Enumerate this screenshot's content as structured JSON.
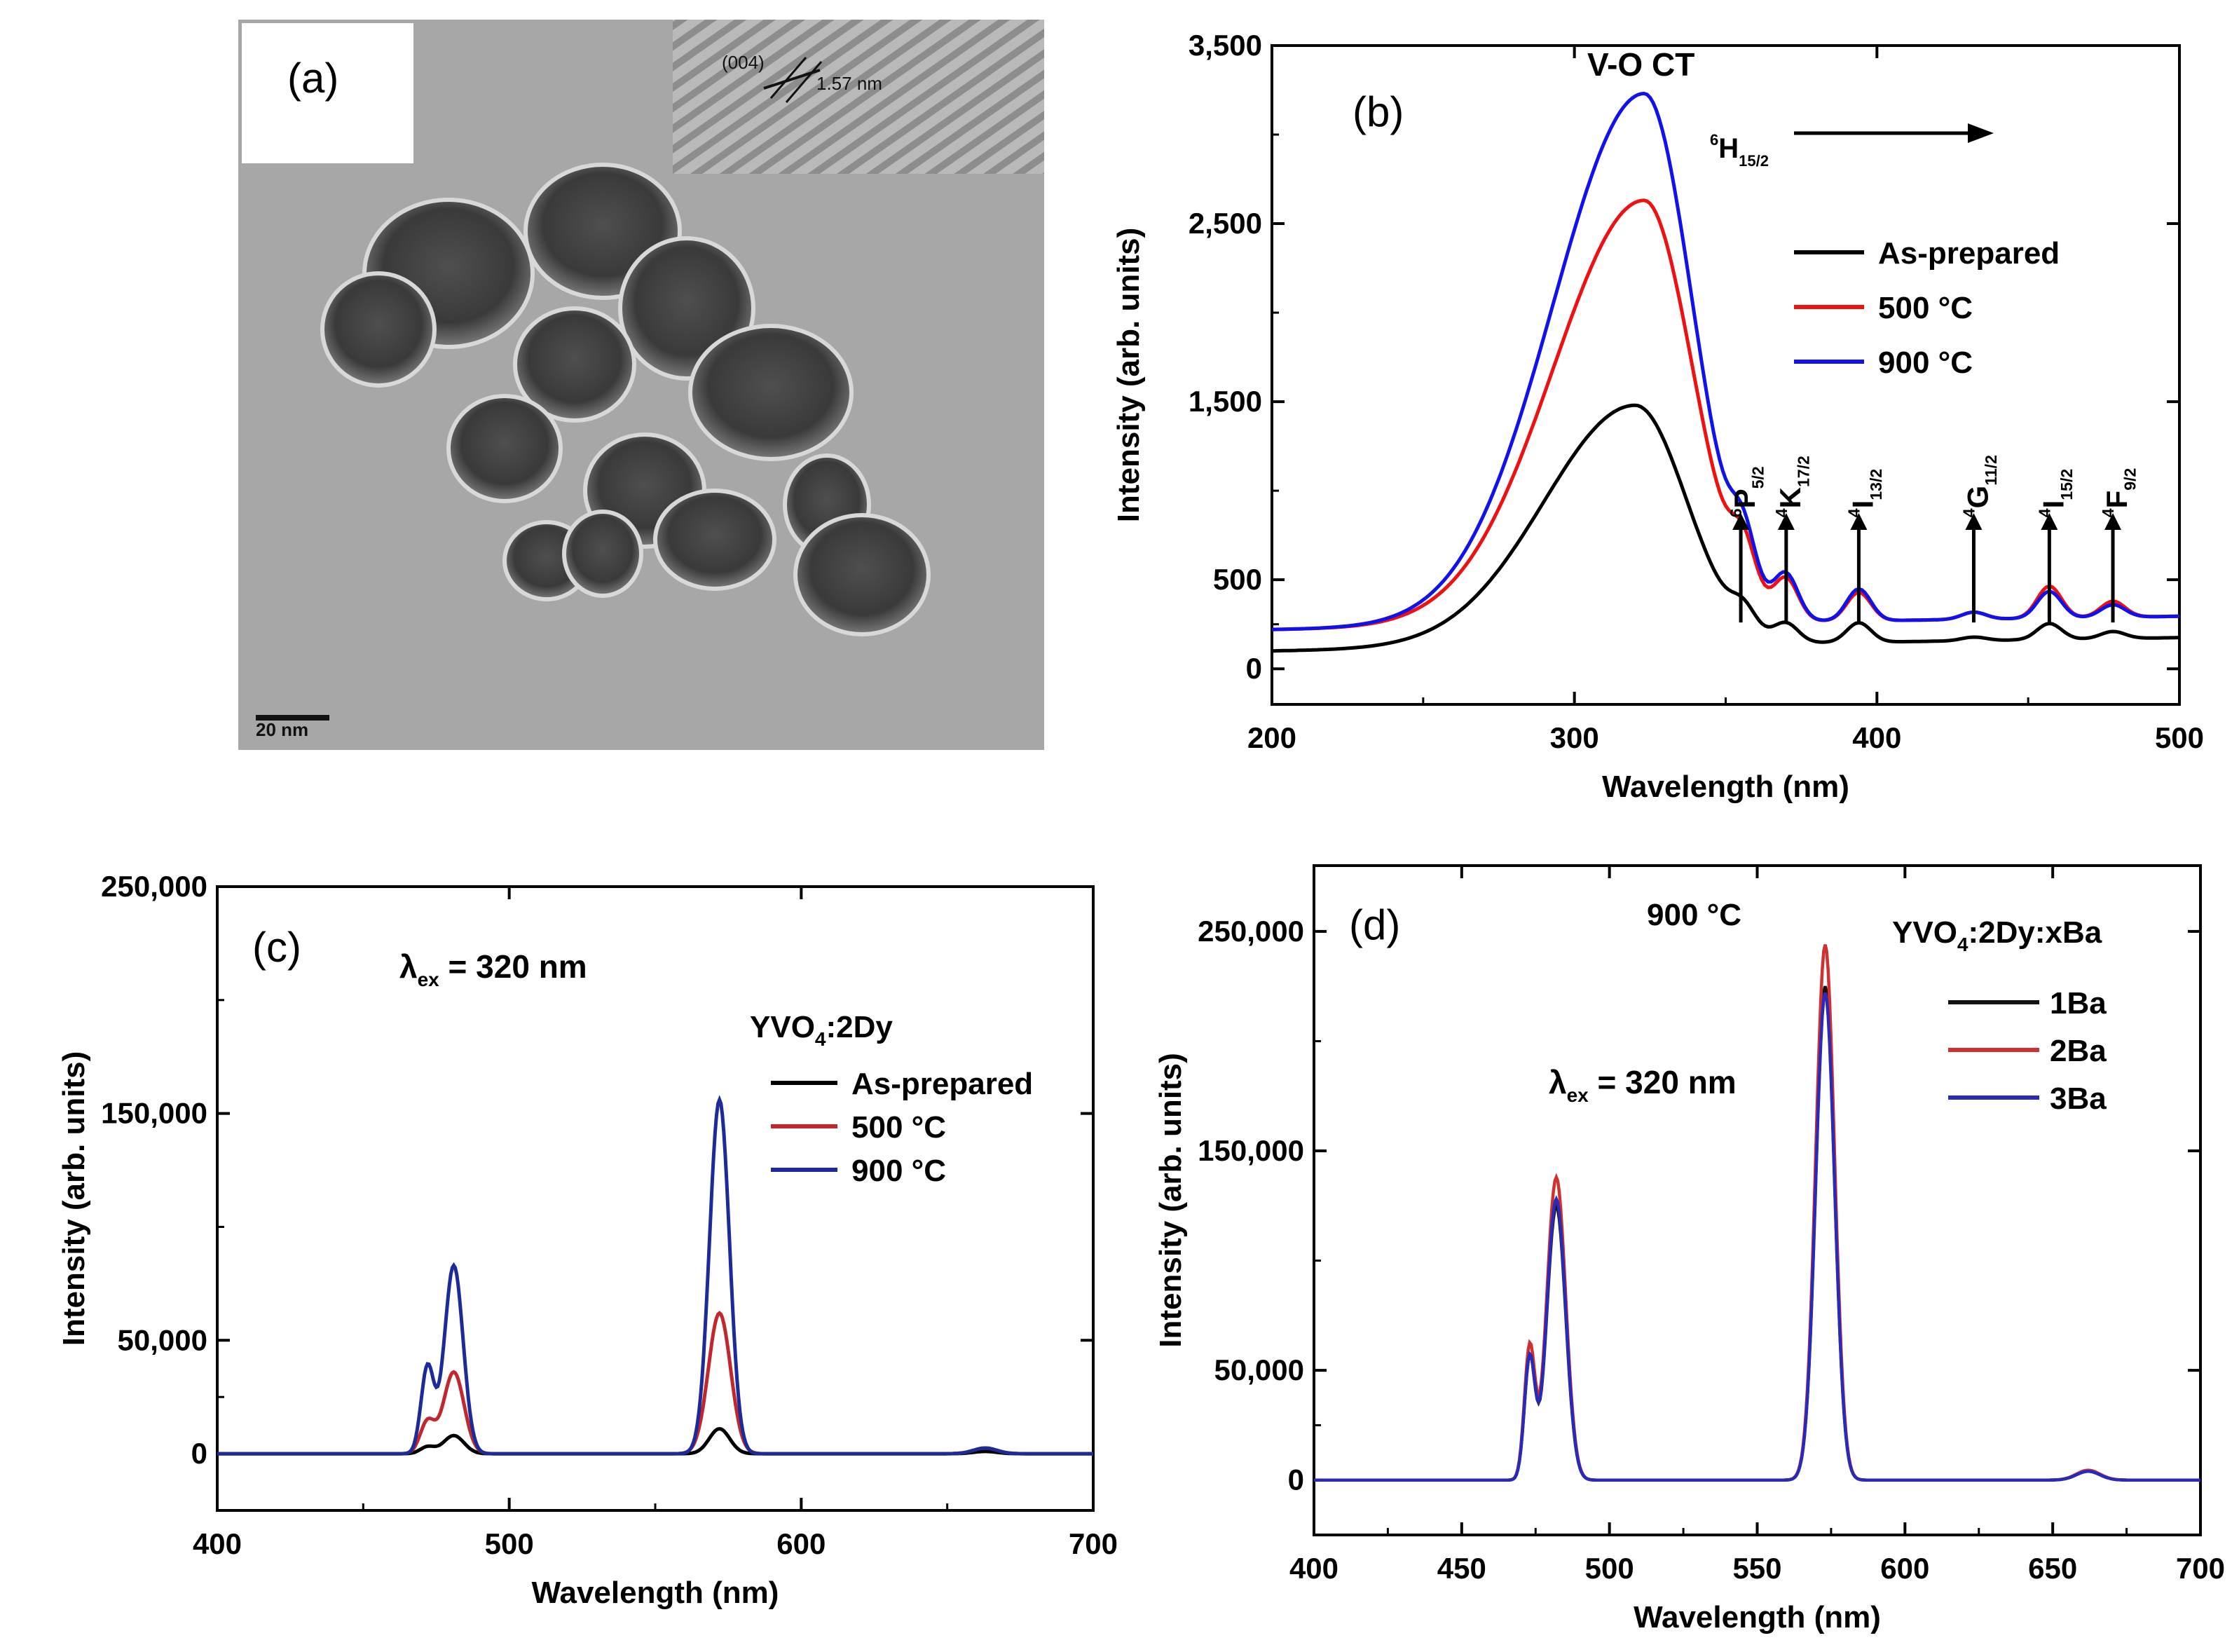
{
  "panel_a": {
    "label": "(a)",
    "lattice_plane": "(004)",
    "lattice_spacing": "1.57 nm",
    "scale_bar": "20 nm"
  },
  "chart_data": [
    {
      "id": "b",
      "type": "line",
      "panel_label": "(b)",
      "xlabel": "Wavelength (nm)",
      "ylabel": "Intensity (arb. units)",
      "xlim": [
        200,
        500
      ],
      "ylim": [
        -200,
        3500
      ],
      "xticks": [
        200,
        300,
        400,
        500
      ],
      "xtick_labels": [
        "200",
        "300",
        "400",
        "500"
      ],
      "yticks": [
        0,
        500,
        1500,
        2500,
        3500
      ],
      "ytick_labels": [
        "0",
        "500",
        "1,500",
        "2,500",
        "3,500"
      ],
      "peak_label": "V-O CT",
      "arrow_label": {
        "sup": "6",
        "main": "H",
        "sub": "15/2"
      },
      "transitions": [
        {
          "x": 355,
          "sup": "6",
          "main": "P",
          "sub": "5/2"
        },
        {
          "x": 370,
          "sup": "4",
          "main": "K",
          "sub": "17/2"
        },
        {
          "x": 394,
          "sup": "4",
          "main": "I",
          "sub": "13/2"
        },
        {
          "x": 432,
          "sup": "4",
          "main": "G",
          "sub": "11/2"
        },
        {
          "x": 457,
          "sup": "4",
          "main": "I",
          "sub": "15/2"
        },
        {
          "x": 478,
          "sup": "4",
          "main": "F",
          "sub": "9/2"
        }
      ],
      "legend": {
        "position": "right"
      },
      "series": [
        {
          "name": "As-prepared",
          "color": "#000000",
          "base": 100,
          "peak_x": 320,
          "peak_y": 1450,
          "width_left": 30,
          "width_right": 17,
          "small_peaks": [
            [
              356,
              110
            ],
            [
              370,
              100
            ],
            [
              394,
              110
            ],
            [
              432,
              20
            ],
            [
              457,
              90
            ],
            [
              478,
              40
            ]
          ]
        },
        {
          "name": "500 °C",
          "color": "#ee1111",
          "base": 220,
          "peak_x": 323,
          "peak_y": 2600,
          "width_left": 30,
          "width_right": 16,
          "small_peaks": [
            [
              356,
              260
            ],
            [
              370,
              220
            ],
            [
              394,
              160
            ],
            [
              432,
              40
            ],
            [
              457,
              180
            ],
            [
              478,
              90
            ]
          ]
        },
        {
          "name": "900 °C",
          "color": "#1111ee",
          "base": 220,
          "peak_x": 323,
          "peak_y": 3200,
          "width_left": 30,
          "width_right": 16,
          "small_peaks": [
            [
              356,
              280
            ],
            [
              370,
              240
            ],
            [
              394,
              180
            ],
            [
              432,
              40
            ],
            [
              457,
              150
            ],
            [
              478,
              70
            ]
          ]
        }
      ]
    },
    {
      "id": "c",
      "type": "line",
      "panel_label": "(c)",
      "xlabel": "Wavelength (nm)",
      "ylabel": "Intensity (arb. units)",
      "xlim": [
        400,
        700
      ],
      "ylim": [
        -25000,
        250000
      ],
      "xticks": [
        400,
        500,
        600,
        700
      ],
      "xtick_labels": [
        "400",
        "500",
        "600",
        "700"
      ],
      "yticks": [
        0,
        50000,
        150000,
        250000
      ],
      "ytick_labels": [
        "0",
        "50,000",
        "150,000",
        "250,000"
      ],
      "excitation": {
        "symbol": "λ",
        "sub": "ex",
        "text": " = 320 nm"
      },
      "legend_title": {
        "a": "YVO",
        "sub": "4",
        "b": ":2Dy"
      },
      "legend": {
        "position": "right"
      },
      "series": [
        {
          "name": "As-prepared",
          "color": "#000000",
          "peaks": [
            [
              472,
              3000,
              2.5
            ],
            [
              481,
              8000,
              3.5
            ],
            [
              572,
              11000,
              3.5
            ],
            [
              663,
              1000,
              4
            ]
          ]
        },
        {
          "name": "500 °C",
          "color": "#c0282d",
          "peaks": [
            [
              472,
              14000,
              2.5
            ],
            [
              481,
              36000,
              3.5
            ],
            [
              572,
              62000,
              3.8
            ],
            [
              663,
              2500,
              4
            ]
          ]
        },
        {
          "name": "900 °C",
          "color": "#1c2a9a",
          "peaks": [
            [
              472,
              38000,
              2.2
            ],
            [
              481,
              83000,
              3.2
            ],
            [
              572,
              156000,
              3.4
            ],
            [
              663,
              2500,
              4
            ]
          ]
        }
      ]
    },
    {
      "id": "d",
      "type": "line",
      "panel_label": "(d)",
      "xlabel": "Wavelength (nm)",
      "ylabel": "Intensity (arb. units)",
      "xlim": [
        400,
        700
      ],
      "ylim": [
        -25000,
        280000
      ],
      "xticks": [
        400,
        450,
        500,
        550,
        600,
        650,
        700
      ],
      "xtick_labels": [
        "400",
        "450",
        "500",
        "550",
        "600",
        "650",
        "700"
      ],
      "yticks": [
        0,
        50000,
        150000,
        250000
      ],
      "ytick_labels": [
        "0",
        "50,000",
        "150,000",
        "250,000"
      ],
      "temperature": "900 °C",
      "excitation": {
        "symbol": "λ",
        "sub": "ex",
        "text": " = 320 nm"
      },
      "legend_title": {
        "a": "YVO",
        "sub": "4",
        "b": ":2Dy:xBa"
      },
      "legend": {
        "position": "top-right"
      },
      "series": [
        {
          "name": "1Ba",
          "color": "#111111",
          "peaks": [
            [
              473,
              55000,
              1.8
            ],
            [
              482,
              125000,
              3.2
            ],
            [
              573,
              225000,
              3.2
            ],
            [
              662,
              4000,
              4
            ]
          ]
        },
        {
          "name": "2Ba",
          "color": "#d03030",
          "peaks": [
            [
              473,
              60000,
              1.8
            ],
            [
              482,
              138000,
              3.2
            ],
            [
              573,
              244000,
              3.2
            ],
            [
              662,
              4500,
              4
            ]
          ]
        },
        {
          "name": "3Ba",
          "color": "#2a2ab8",
          "peaks": [
            [
              473,
              55000,
              1.8
            ],
            [
              482,
              128000,
              3.2
            ],
            [
              573,
              222000,
              3.2
            ],
            [
              662,
              4000,
              4
            ]
          ]
        }
      ]
    }
  ]
}
